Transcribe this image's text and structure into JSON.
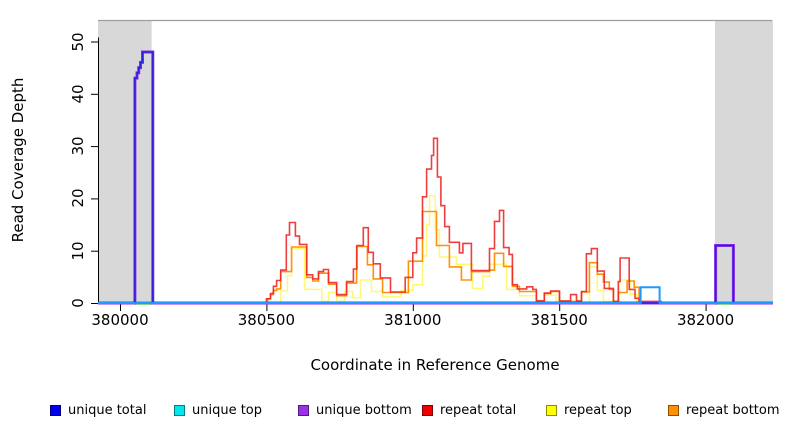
{
  "chart_data": {
    "type": "line",
    "subtype": "step-coverage",
    "title": "",
    "xlabel": "Coordinate in Reference Genome",
    "ylabel": "Read Coverage Depth",
    "xlim": [
      379925,
      382230
    ],
    "ylim": [
      0,
      54
    ],
    "grid": false,
    "legend_position": "bottom",
    "x_ticks": [
      380000,
      380500,
      381000,
      381500,
      382000
    ],
    "y_ticks": [
      0,
      10,
      20,
      30,
      40,
      50
    ],
    "masked_region_color": "#D8D8D8",
    "masked_regions": [
      [
        379925,
        380108
      ],
      [
        382032,
        382230
      ]
    ],
    "green_marker_color": "#7CCD7C",
    "green_markers": [
      [
        380051,
        380110
      ],
      [
        382034,
        382093
      ]
    ],
    "baseline_overlay_color": "#8F2FE8",
    "series": [
      {
        "name": "repeat top",
        "color": "#FFF200",
        "opacity": 0.55,
        "width": 1.5,
        "steps": [
          [
            379925,
            0
          ],
          [
            380549,
            2.3
          ],
          [
            380572,
            5.2
          ],
          [
            380586,
            10.4
          ],
          [
            380630,
            2.6
          ],
          [
            380689,
            0.3
          ],
          [
            380712,
            2.0
          ],
          [
            380740,
            0.3
          ],
          [
            380767,
            2.2
          ],
          [
            380795,
            1.0
          ],
          [
            380821,
            4.4
          ],
          [
            380859,
            2.2
          ],
          [
            380897,
            1.2
          ],
          [
            380960,
            2.4
          ],
          [
            381000,
            3.5
          ],
          [
            381033,
            9.0
          ],
          [
            381047,
            15.0
          ],
          [
            381057,
            20.5
          ],
          [
            381077,
            14.0
          ],
          [
            381091,
            8.8
          ],
          [
            381149,
            7.4
          ],
          [
            381204,
            2.8
          ],
          [
            381239,
            5.1
          ],
          [
            381262,
            7.4
          ],
          [
            381320,
            2.6
          ],
          [
            381364,
            1.4
          ],
          [
            381422,
            0
          ],
          [
            381449,
            1.5
          ],
          [
            381489,
            0
          ],
          [
            381603,
            6.9
          ],
          [
            381630,
            2.4
          ],
          [
            381651,
            0.3
          ],
          [
            381706,
            4.4
          ],
          [
            381742,
            1.7
          ],
          [
            381765,
            0
          ]
        ]
      },
      {
        "name": "repeat bottom",
        "color": "#FF8C00",
        "opacity": 0.95,
        "width": 1.6,
        "steps": [
          [
            379925,
            0
          ],
          [
            380504,
            0.8
          ],
          [
            380514,
            1.6
          ],
          [
            380524,
            2.4
          ],
          [
            380535,
            2.7
          ],
          [
            380549,
            6.0
          ],
          [
            380586,
            10.7
          ],
          [
            380637,
            4.9
          ],
          [
            380658,
            4.2
          ],
          [
            380678,
            5.7
          ],
          [
            380712,
            3.6
          ],
          [
            380740,
            1.4
          ],
          [
            380774,
            3.8
          ],
          [
            380808,
            10.8
          ],
          [
            380845,
            7.3
          ],
          [
            380865,
            4.6
          ],
          [
            380897,
            2.0
          ],
          [
            380985,
            8.0
          ],
          [
            381033,
            17.5
          ],
          [
            381081,
            11.0
          ],
          [
            381125,
            6.9
          ],
          [
            381166,
            4.4
          ],
          [
            381200,
            6.0
          ],
          [
            381262,
            6.3
          ],
          [
            381279,
            9.5
          ],
          [
            381310,
            7.0
          ],
          [
            381340,
            3.2
          ],
          [
            381364,
            2.2
          ],
          [
            381422,
            0.4
          ],
          [
            381449,
            1.8
          ],
          [
            381471,
            2.2
          ],
          [
            381501,
            0.3
          ],
          [
            381576,
            2.1
          ],
          [
            381603,
            7.7
          ],
          [
            381630,
            5.5
          ],
          [
            381651,
            4.0
          ],
          [
            381671,
            2.6
          ],
          [
            381685,
            0.3
          ],
          [
            381702,
            2.0
          ],
          [
            381732,
            4.2
          ],
          [
            381756,
            3.0
          ],
          [
            381773,
            0
          ]
        ]
      },
      {
        "name": "repeat total",
        "color": "#EE2222",
        "opacity": 0.88,
        "width": 1.6,
        "steps": [
          [
            379925,
            0
          ],
          [
            380500,
            0.8
          ],
          [
            380514,
            1.8
          ],
          [
            380524,
            3.2
          ],
          [
            380535,
            4.3
          ],
          [
            380549,
            6.3
          ],
          [
            380568,
            13.0
          ],
          [
            380579,
            15.4
          ],
          [
            380599,
            12.8
          ],
          [
            380613,
            11.2
          ],
          [
            380638,
            5.4
          ],
          [
            380658,
            4.6
          ],
          [
            380678,
            6.0
          ],
          [
            380695,
            6.4
          ],
          [
            380712,
            3.9
          ],
          [
            380740,
            1.6
          ],
          [
            380774,
            4.1
          ],
          [
            380797,
            6.5
          ],
          [
            380809,
            11.0
          ],
          [
            380831,
            14.4
          ],
          [
            380848,
            9.7
          ],
          [
            380865,
            7.5
          ],
          [
            380889,
            4.8
          ],
          [
            380924,
            2.1
          ],
          [
            380974,
            4.9
          ],
          [
            381000,
            9.6
          ],
          [
            381013,
            12.4
          ],
          [
            381033,
            20.3
          ],
          [
            381047,
            25.6
          ],
          [
            381064,
            28.2
          ],
          [
            381071,
            31.5
          ],
          [
            381084,
            24.1
          ],
          [
            381096,
            18.6
          ],
          [
            381109,
            14.6
          ],
          [
            381125,
            11.6
          ],
          [
            381159,
            9.6
          ],
          [
            381171,
            11.4
          ],
          [
            381200,
            6.2
          ],
          [
            381262,
            10.4
          ],
          [
            381279,
            15.6
          ],
          [
            381296,
            17.7
          ],
          [
            381310,
            10.6
          ],
          [
            381329,
            9.3
          ],
          [
            381340,
            3.5
          ],
          [
            381357,
            2.7
          ],
          [
            381389,
            3.1
          ],
          [
            381410,
            2.6
          ],
          [
            381422,
            0.4
          ],
          [
            381449,
            1.9
          ],
          [
            381471,
            2.3
          ],
          [
            381501,
            0.4
          ],
          [
            381539,
            1.6
          ],
          [
            381559,
            0.4
          ],
          [
            381576,
            2.2
          ],
          [
            381593,
            9.4
          ],
          [
            381610,
            10.4
          ],
          [
            381630,
            6.1
          ],
          [
            381654,
            2.8
          ],
          [
            381685,
            0.3
          ],
          [
            381702,
            4.1
          ],
          [
            381708,
            8.6
          ],
          [
            381739,
            2.6
          ],
          [
            381759,
            0.9
          ],
          [
            381773,
            0.3
          ],
          [
            381848,
            0
          ]
        ]
      },
      {
        "name": "unique bottom",
        "color": "#8F2FE8",
        "opacity": 1,
        "width": 3.0,
        "steps": [
          [
            379925,
            0
          ],
          [
            380051,
            43
          ],
          [
            380058,
            44
          ],
          [
            380064,
            45
          ],
          [
            380070,
            46
          ],
          [
            380077,
            48
          ],
          [
            380112,
            0
          ],
          [
            382034,
            11
          ],
          [
            382095,
            0
          ]
        ]
      },
      {
        "name": "unique total",
        "color": "#2B22DD",
        "opacity": 1,
        "width": 1.5,
        "steps": [
          [
            379925,
            0
          ],
          [
            380051,
            43
          ],
          [
            380058,
            44
          ],
          [
            380064,
            45
          ],
          [
            380070,
            46
          ],
          [
            380077,
            48
          ],
          [
            380112,
            0
          ],
          [
            382034,
            11
          ],
          [
            382095,
            0
          ]
        ]
      },
      {
        "name": "unique top",
        "color": "#1C9BFF",
        "opacity": 1,
        "width": 2.0,
        "steps": [
          [
            379925,
            0
          ],
          [
            381778,
            3
          ],
          [
            381843,
            0
          ]
        ]
      }
    ],
    "legend": [
      {
        "label": "unique total",
        "color": "#0000EE"
      },
      {
        "label": "unique top",
        "color": "#00E5EE"
      },
      {
        "label": "unique bottom",
        "color": "#9A32E8"
      },
      {
        "label": "repeat total",
        "color": "#EE0000"
      },
      {
        "label": "repeat top",
        "color": "#FFFF00"
      },
      {
        "label": "repeat bottom",
        "color": "#FF9100"
      }
    ]
  },
  "axes": {
    "x_label": "Coordinate in Reference Genome",
    "y_label": "Read Coverage Depth"
  }
}
